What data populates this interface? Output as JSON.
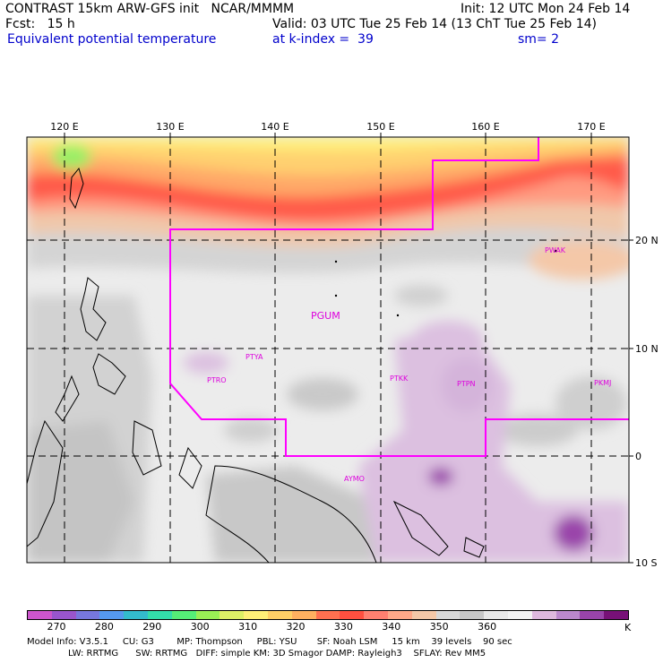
{
  "header": {
    "line1_left": "CONTRAST 15km ARW-GFS init   NCAR/MMMM",
    "line1_right": "Init: 12 UTC Mon 24 Feb 14",
    "fcst": "Fcst:   15 h",
    "valid": "Valid: 03 UTC Tue 25 Feb 14 (13 ChT Tue 25 Feb 14)",
    "field": "Equivalent potential temperature",
    "level": "at k-index =  39",
    "smooth": "sm= 2"
  },
  "axes": {
    "lon_labels": [
      "120 E",
      "130 E",
      "140 E",
      "150 E",
      "160 E",
      "170 E"
    ],
    "lat_labels": [
      "20 N",
      "10 N",
      "0",
      "10 S"
    ]
  },
  "stations": [
    {
      "id": "PGUM"
    },
    {
      "id": "PTYA"
    },
    {
      "id": "PTRO"
    },
    {
      "id": "PTKK"
    },
    {
      "id": "PTPN"
    },
    {
      "id": "PKMJ"
    },
    {
      "id": "PWAK"
    },
    {
      "id": "AYMO"
    }
  ],
  "colorbar": {
    "colors": [
      "#cc55cc",
      "#9955cc",
      "#7777dd",
      "#5599ee",
      "#33bbcc",
      "#33ddaa",
      "#55ee77",
      "#99ee55",
      "#ddf066",
      "#fff077",
      "#ffd066",
      "#ffb060",
      "#ff7050",
      "#ff5040",
      "#ff8070",
      "#ffa888",
      "#f4c8a8",
      "#d8d8d8",
      "#c8c8c8",
      "#e8e8e8",
      "#f2f2f2",
      "#ddb8dd",
      "#bb88cc",
      "#9944aa",
      "#771177"
    ],
    "labels": [
      "270",
      "280",
      "290",
      "300",
      "310",
      "320",
      "330",
      "340",
      "350",
      "360"
    ],
    "unit": "K"
  },
  "model_info": {
    "line1": "Model Info: V3.5.1     CU: G3        MP: Thompson     PBL: YSU       SF: Noah LSM     15 km    39 levels    90 sec",
    "line2": "LW: RRTMG      SW: RRTMG   DIFF: simple KM: 3D Smagor DAMP: Rayleigh3    SFLAY: Rev MM5"
  }
}
